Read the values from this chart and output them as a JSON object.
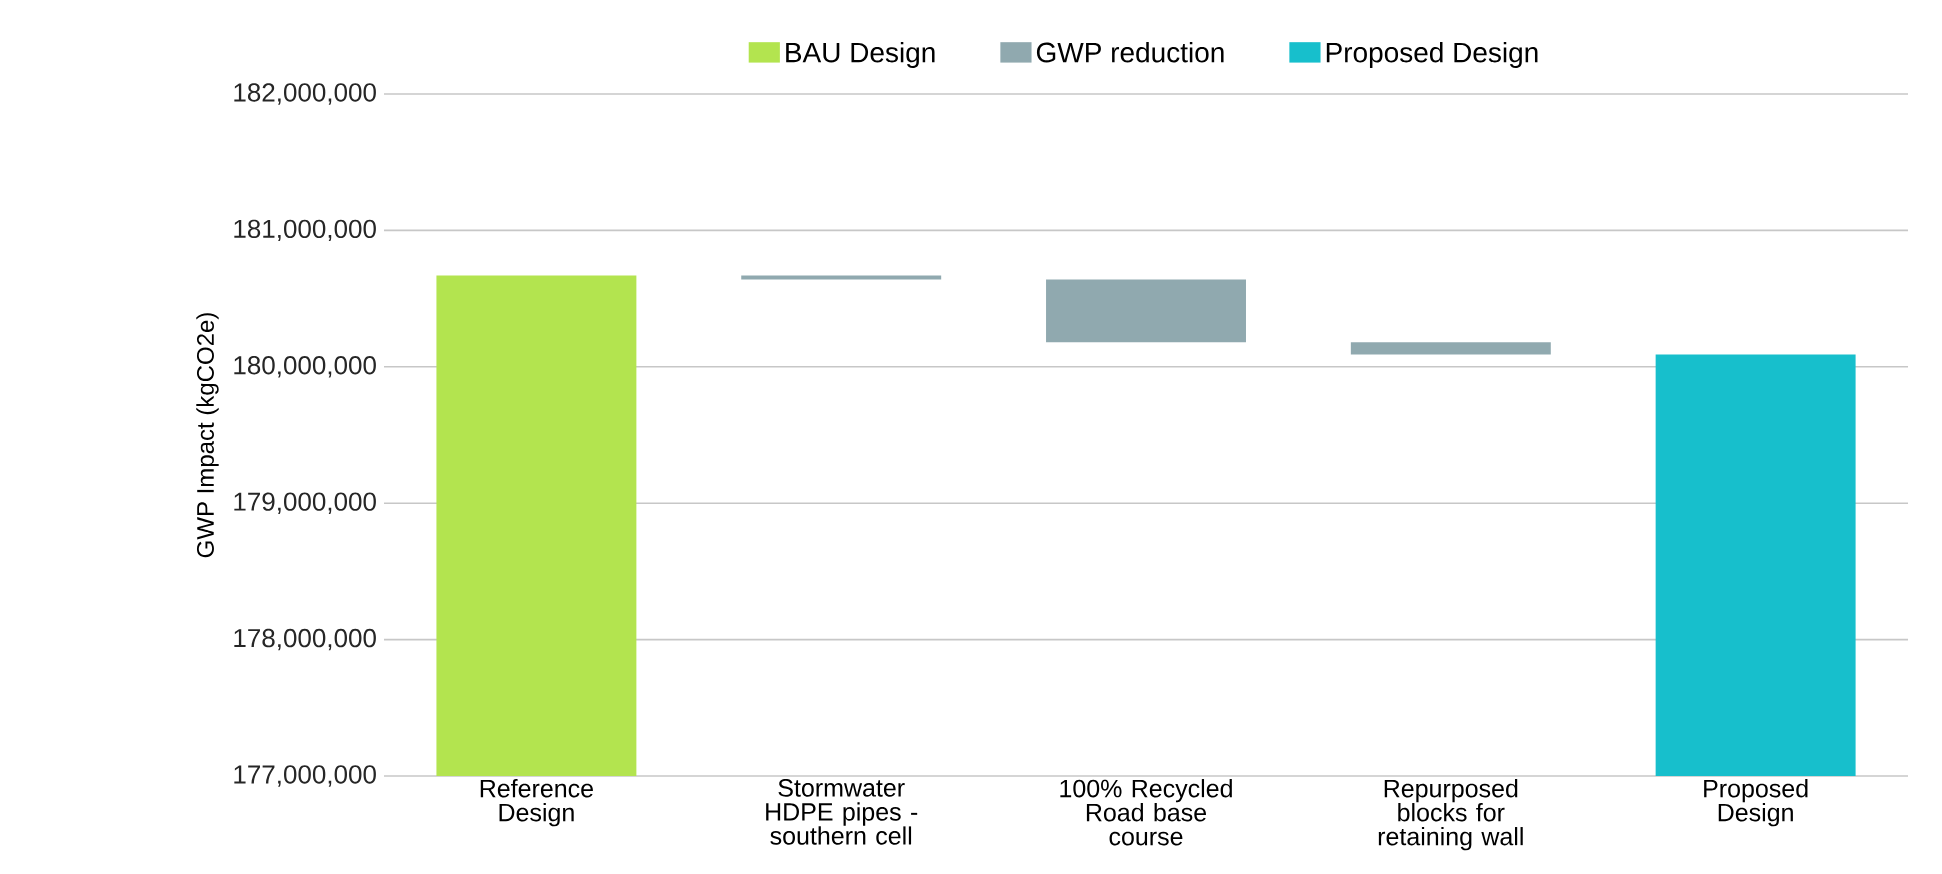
{
  "chart_data": {
    "type": "bar",
    "ylabel": "GWP Impact (kgCO2e)",
    "categories": [
      "Reference Design",
      "Stormwater HDPE pipes - southern cell",
      "100% Recycled Road base course",
      "Repurposed blocks for retaining wall",
      "Proposed Design"
    ],
    "series": [
      {
        "name": "BAU Design",
        "color": "#b3e44f",
        "values": [
          180670000,
          null,
          null,
          null,
          null
        ]
      },
      {
        "name": "GWP reduction",
        "color": "#90a9af",
        "base": [
          null,
          180640000,
          180180000,
          180090000,
          null
        ],
        "values": [
          null,
          30000,
          460000,
          90000,
          null
        ]
      },
      {
        "name": "Proposed Design",
        "color": "#17bfcc",
        "values": [
          null,
          null,
          null,
          null,
          180090000
        ]
      }
    ],
    "ylim": [
      177000000,
      182000000
    ],
    "yticks": [
      {
        "value": 177000000,
        "label": "177,000,000"
      },
      {
        "value": 178000000,
        "label": "178,000,000"
      },
      {
        "value": 179000000,
        "label": "179,000,000"
      },
      {
        "value": 180000000,
        "label": "180,000,000"
      },
      {
        "value": 181000000,
        "label": "181,000,000"
      },
      {
        "value": 182000000,
        "label": "182,000,000"
      }
    ],
    "grid": "y",
    "legend": "top"
  }
}
